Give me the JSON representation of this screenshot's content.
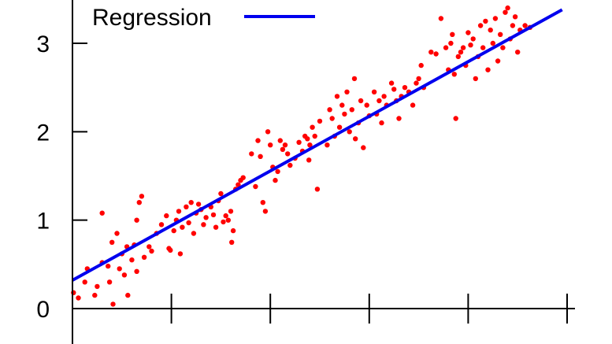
{
  "colors": {
    "points": "#ff0000",
    "regression": "#0000ee",
    "axis": "#000000"
  },
  "chart_data": {
    "type": "scatter",
    "title": "",
    "xlabel": "",
    "ylabel": "",
    "xlim": [
      0,
      1
    ],
    "ylim": [
      0,
      3.5
    ],
    "y_ticks": [
      "0",
      "1",
      "2",
      "3"
    ],
    "legend": {
      "placement": "top-left",
      "entries": [
        "Regression"
      ]
    },
    "series": [
      {
        "kind": "points",
        "points": [
          [
            0.002,
            0.18
          ],
          [
            0.012,
            0.12
          ],
          [
            0.025,
            0.3
          ],
          [
            0.03,
            0.45
          ],
          [
            0.045,
            0.15
          ],
          [
            0.05,
            0.25
          ],
          [
            0.06,
            1.08
          ],
          [
            0.06,
            0.52
          ],
          [
            0.072,
            0.48
          ],
          [
            0.075,
            0.3
          ],
          [
            0.08,
            0.75
          ],
          [
            0.082,
            0.05
          ],
          [
            0.09,
            0.85
          ],
          [
            0.095,
            0.45
          ],
          [
            0.1,
            0.62
          ],
          [
            0.105,
            0.38
          ],
          [
            0.11,
            0.7
          ],
          [
            0.112,
            0.15
          ],
          [
            0.12,
            0.55
          ],
          [
            0.125,
            0.72
          ],
          [
            0.13,
            1.0
          ],
          [
            0.13,
            0.42
          ],
          [
            0.135,
            1.2
          ],
          [
            0.14,
            1.27
          ],
          [
            0.145,
            0.58
          ],
          [
            0.155,
            0.7
          ],
          [
            0.16,
            0.65
          ],
          [
            0.17,
            0.85
          ],
          [
            0.18,
            0.95
          ],
          [
            0.19,
            1.05
          ],
          [
            0.195,
            0.68
          ],
          [
            0.198,
            0.66
          ],
          [
            0.205,
            0.88
          ],
          [
            0.21,
            1.0
          ],
          [
            0.215,
            1.1
          ],
          [
            0.218,
            0.62
          ],
          [
            0.222,
            0.92
          ],
          [
            0.23,
            1.15
          ],
          [
            0.235,
            0.97
          ],
          [
            0.24,
            1.2
          ],
          [
            0.245,
            0.85
          ],
          [
            0.25,
            1.08
          ],
          [
            0.255,
            1.18
          ],
          [
            0.26,
            1.12
          ],
          [
            0.265,
            0.95
          ],
          [
            0.27,
            1.03
          ],
          [
            0.28,
            1.15
          ],
          [
            0.285,
            1.06
          ],
          [
            0.29,
            0.92
          ],
          [
            0.295,
            1.22
          ],
          [
            0.3,
            1.3
          ],
          [
            0.305,
            0.98
          ],
          [
            0.31,
            1.05
          ],
          [
            0.315,
            1.0
          ],
          [
            0.32,
            1.1
          ],
          [
            0.322,
            0.75
          ],
          [
            0.325,
            0.88
          ],
          [
            0.33,
            1.35
          ],
          [
            0.335,
            1.4
          ],
          [
            0.34,
            1.45
          ],
          [
            0.345,
            1.48
          ],
          [
            0.362,
            1.75
          ],
          [
            0.37,
            1.38
          ],
          [
            0.375,
            1.9
          ],
          [
            0.38,
            1.72
          ],
          [
            0.385,
            1.2
          ],
          [
            0.39,
            1.1
          ],
          [
            0.395,
            2.0
          ],
          [
            0.4,
            1.85
          ],
          [
            0.405,
            1.6
          ],
          [
            0.41,
            1.45
          ],
          [
            0.415,
            1.55
          ],
          [
            0.42,
            1.9
          ],
          [
            0.425,
            1.8
          ],
          [
            0.43,
            1.85
          ],
          [
            0.435,
            1.75
          ],
          [
            0.44,
            1.62
          ],
          [
            0.45,
            1.7
          ],
          [
            0.458,
            1.88
          ],
          [
            0.465,
            1.78
          ],
          [
            0.47,
            1.95
          ],
          [
            0.475,
            1.92
          ],
          [
            0.478,
            1.68
          ],
          [
            0.48,
            1.85
          ],
          [
            0.485,
            2.05
          ],
          [
            0.49,
            1.95
          ],
          [
            0.495,
            1.35
          ],
          [
            0.5,
            2.12
          ],
          [
            0.515,
            1.85
          ],
          [
            0.52,
            2.25
          ],
          [
            0.525,
            2.15
          ],
          [
            0.53,
            1.95
          ],
          [
            0.535,
            2.4
          ],
          [
            0.54,
            2.05
          ],
          [
            0.545,
            2.3
          ],
          [
            0.55,
            2.2
          ],
          [
            0.555,
            2.45
          ],
          [
            0.56,
            2.0
          ],
          [
            0.565,
            2.25
          ],
          [
            0.57,
            2.6
          ],
          [
            0.572,
            1.92
          ],
          [
            0.578,
            2.1
          ],
          [
            0.583,
            2.35
          ],
          [
            0.588,
            1.82
          ],
          [
            0.595,
            2.3
          ],
          [
            0.6,
            2.18
          ],
          [
            0.61,
            2.45
          ],
          [
            0.615,
            2.2
          ],
          [
            0.62,
            2.35
          ],
          [
            0.625,
            2.1
          ],
          [
            0.63,
            2.4
          ],
          [
            0.635,
            2.3
          ],
          [
            0.645,
            2.55
          ],
          [
            0.65,
            2.48
          ],
          [
            0.655,
            2.35
          ],
          [
            0.66,
            2.15
          ],
          [
            0.665,
            2.4
          ],
          [
            0.672,
            2.5
          ],
          [
            0.68,
            2.45
          ],
          [
            0.688,
            2.3
          ],
          [
            0.695,
            2.55
          ],
          [
            0.7,
            2.6
          ],
          [
            0.705,
            2.75
          ],
          [
            0.71,
            2.5
          ],
          [
            0.725,
            2.9
          ],
          [
            0.735,
            2.88
          ],
          [
            0.745,
            3.28
          ],
          [
            0.755,
            2.95
          ],
          [
            0.76,
            2.7
          ],
          [
            0.765,
            3.0
          ],
          [
            0.768,
            3.1
          ],
          [
            0.772,
            2.65
          ],
          [
            0.775,
            2.15
          ],
          [
            0.78,
            2.85
          ],
          [
            0.785,
            2.9
          ],
          [
            0.79,
            2.95
          ],
          [
            0.795,
            2.75
          ],
          [
            0.8,
            3.12
          ],
          [
            0.805,
            2.98
          ],
          [
            0.81,
            3.05
          ],
          [
            0.815,
            2.6
          ],
          [
            0.82,
            2.85
          ],
          [
            0.825,
            3.2
          ],
          [
            0.83,
            2.95
          ],
          [
            0.835,
            3.25
          ],
          [
            0.84,
            2.7
          ],
          [
            0.845,
            3.15
          ],
          [
            0.85,
            3.0
          ],
          [
            0.855,
            3.28
          ],
          [
            0.86,
            2.8
          ],
          [
            0.865,
            3.1
          ],
          [
            0.87,
            2.95
          ],
          [
            0.875,
            3.35
          ],
          [
            0.88,
            3.4
          ],
          [
            0.885,
            3.05
          ],
          [
            0.89,
            3.2
          ],
          [
            0.895,
            3.3
          ],
          [
            0.9,
            2.9
          ],
          [
            0.905,
            3.15
          ],
          [
            0.915,
            3.2
          ],
          [
            0.925,
            3.18
          ]
        ]
      },
      {
        "kind": "line",
        "name": "Regression",
        "points": [
          [
            0.0,
            0.32
          ],
          [
            0.99,
            3.38
          ]
        ]
      }
    ]
  }
}
